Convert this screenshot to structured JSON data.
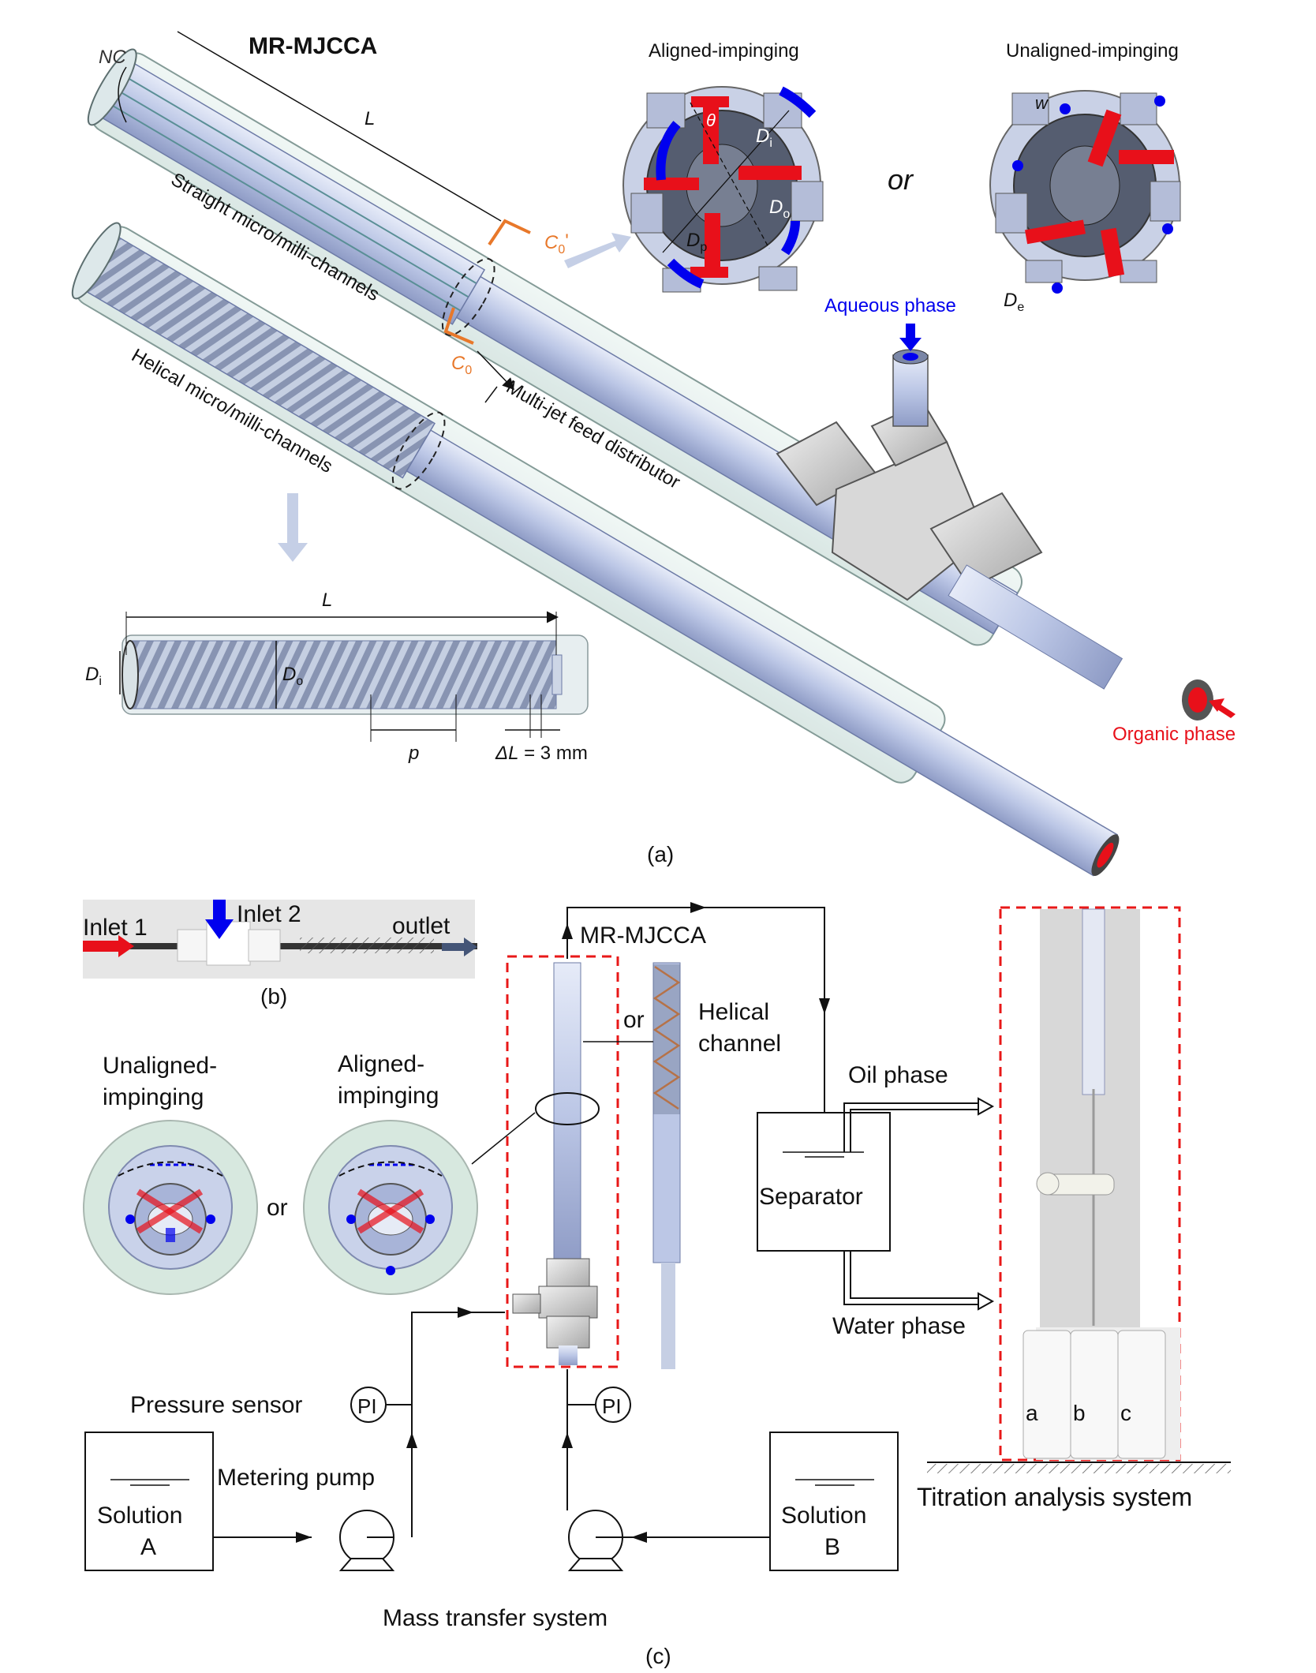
{
  "panel_a": {
    "title": "MR-MJCCA",
    "nc_label": "NC",
    "length_label": "L",
    "straight_label": "Straight micro/milli-channels",
    "helical_label": "Helical micro/milli-channels",
    "distributor_label": "Multi-jet feed distributor",
    "c0_prime": "C",
    "c0_prime_sub": "0",
    "c0_prime_mark": "'",
    "c0": "C",
    "c0_sub": "0",
    "aligned_title": "Aligned-impinging",
    "unaligned_title": "Unaligned-impinging",
    "or_label": "or",
    "theta": "θ",
    "di": "D",
    "di_sub": "i",
    "do": "D",
    "do_sub": "o",
    "dp": "D",
    "dp_sub": "p",
    "de": "D",
    "de_sub": "e",
    "w": "w",
    "aqueous": "Aqueous phase",
    "organic": "Organic phase",
    "detail_L": "L",
    "detail_p": "p",
    "detail_dl": "ΔL",
    "detail_dl_value": " = 3 mm",
    "caption": "(a)"
  },
  "panel_b": {
    "inlet1": "Inlet 1",
    "inlet2": "Inlet 2",
    "outlet": "outlet",
    "caption": "(b)"
  },
  "panel_c": {
    "mrmjcca": "MR-MJCCA",
    "or_mid": "or",
    "helical1": "Helical",
    "helical2": "channel",
    "unaligned1": "Unaligned-",
    "unaligned2": "impinging",
    "aligned1": "Aligned-",
    "aligned2": "impinging",
    "or_left": "or",
    "oil": "Oil phase",
    "water": "Water phase",
    "separator": "Separator",
    "pressure": "Pressure sensor",
    "pi": "PI",
    "metering": "Metering pump",
    "solution_a1": "Solution",
    "solution_a2": "A",
    "solution_b1": "Solution",
    "solution_b2": "B",
    "mass_transfer": "Mass transfer system",
    "titration": "Titration analysis system",
    "vial_a": "a",
    "vial_b": "b",
    "vial_c": "c",
    "caption": "(c)"
  },
  "colors": {
    "aqueous": "#0000ee",
    "organic": "#e8101a",
    "orange": "#e8782a",
    "dashed_red": "#e81818",
    "tube": "#c9d3ec"
  }
}
